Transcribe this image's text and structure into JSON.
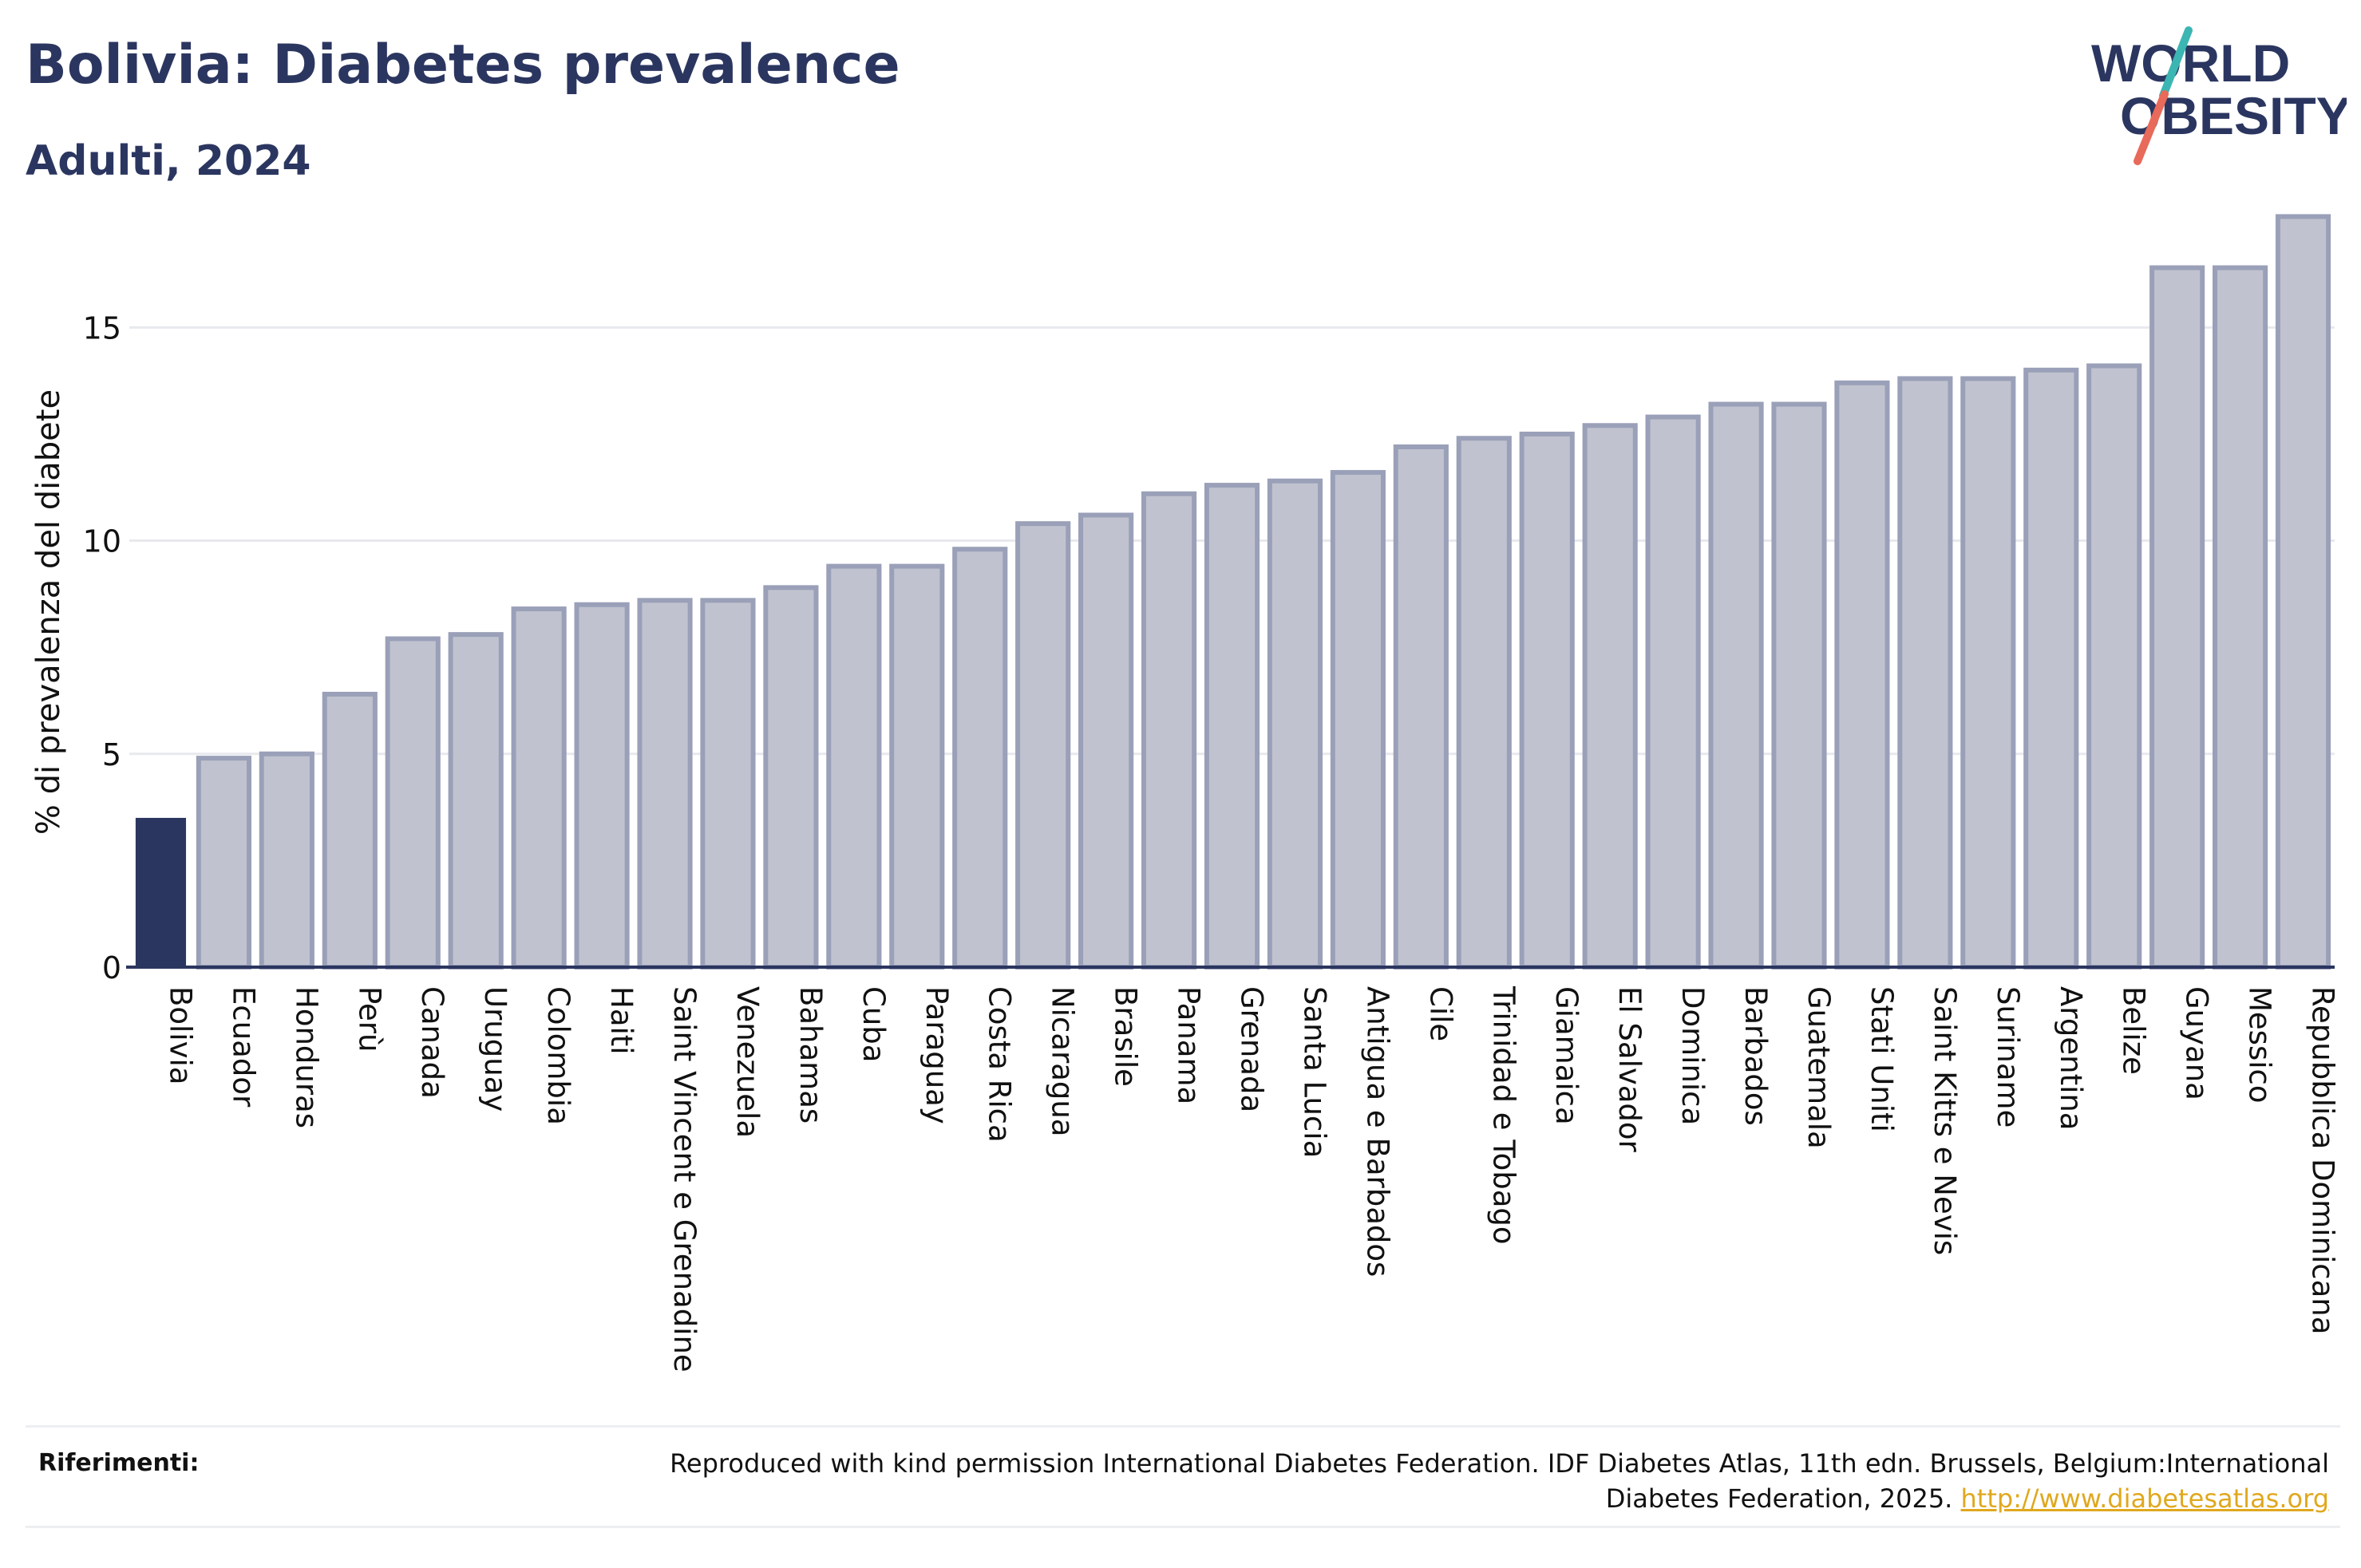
{
  "header": {
    "title": "Bolivia: Diabetes prevalence",
    "subtitle": "Adulti, 2024"
  },
  "logo": {
    "line1": "WORLD",
    "line2": "OBESITY",
    "accent_teal": "#3bb6b3",
    "accent_coral": "#e86a5a"
  },
  "colors": {
    "highlight": "#2b3660",
    "bar_fill": "#c0c3cf",
    "bar_stroke": "#9aa0b8",
    "grid": "#e8e9ee",
    "axis": "#2b3660"
  },
  "chart_data": {
    "type": "bar",
    "title": "Bolivia: Diabetes prevalence",
    "subtitle": "Adulti, 2024",
    "xlabel": "",
    "ylabel": "% di prevalenza del diabete",
    "ylim": [
      0,
      18
    ],
    "yticks": [
      0,
      5,
      10,
      15
    ],
    "grid": true,
    "highlight": "Bolivia",
    "categories": [
      "Bolivia",
      "Ecuador",
      "Honduras",
      "Perù",
      "Canada",
      "Uruguay",
      "Colombia",
      "Haiti",
      "Saint Vincent e Grenadine",
      "Venezuela",
      "Bahamas",
      "Cuba",
      "Paraguay",
      "Costa Rica",
      "Nicaragua",
      "Brasile",
      "Panama",
      "Grenada",
      "Santa Lucia",
      "Antigua e Barbados",
      "Cile",
      "Trinidad e Tobago",
      "Giamaica",
      "El Salvador",
      "Dominica",
      "Barbados",
      "Guatemala",
      "Stati Uniti",
      "Saint Kitts e Nevis",
      "Suriname",
      "Argentina",
      "Belize",
      "Guyana",
      "Messico",
      "Repubblica Dominicana"
    ],
    "values": [
      3.5,
      4.9,
      5.0,
      6.4,
      7.7,
      7.8,
      8.4,
      8.5,
      8.6,
      8.6,
      8.9,
      9.4,
      9.4,
      9.8,
      10.4,
      10.6,
      11.1,
      11.3,
      11.4,
      11.6,
      12.2,
      12.4,
      12.5,
      12.7,
      12.9,
      13.2,
      13.2,
      13.7,
      13.8,
      13.8,
      14.0,
      14.1,
      16.4,
      16.4,
      17.6
    ]
  },
  "references": {
    "label": "Riferimenti:",
    "text": "Reproduced with kind permission International Diabetes Federation. IDF Diabetes Atlas, 11th edn. Brussels, Belgium:International Diabetes Federation, 2025.",
    "link": "http://www.diabetesatlas.org"
  }
}
